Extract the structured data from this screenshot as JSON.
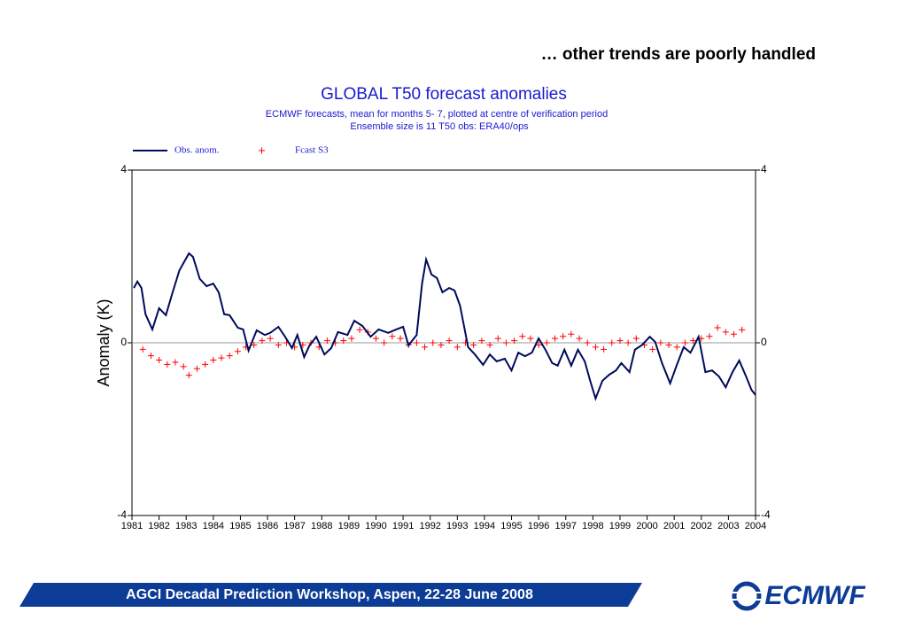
{
  "slide_title": "… other trends are poorly handled",
  "footer": "AGCI Decadal Prediction Workshop, Aspen, 22-28 June 2008",
  "logo": "ECMWF",
  "chart_data": {
    "type": "line",
    "title": "GLOBAL T50 forecast anomalies",
    "subtitle": [
      "ECMWF forecasts, mean for months  5- 7, plotted at centre of verification period",
      "Ensemble size is 11     T50 obs: ERA40/ops"
    ],
    "ylabel": "Anomaly (K)",
    "xlim": [
      1981,
      2004
    ],
    "xticks": [
      1981,
      1982,
      1983,
      1984,
      1985,
      1986,
      1987,
      1988,
      1989,
      1990,
      1991,
      1992,
      1993,
      1994,
      1995,
      1996,
      1997,
      1998,
      1999,
      2000,
      2001,
      2002,
      2003,
      2004
    ],
    "ylim": [
      -4,
      4
    ],
    "yticks": [
      -4,
      0,
      4
    ],
    "series": [
      {
        "name": "Obs. anom.",
        "color": "#000a5a",
        "style": "line",
        "x": [
          1981.07,
          1981.2,
          1981.35,
          1981.5,
          1981.75,
          1982.0,
          1982.25,
          1982.5,
          1982.75,
          1983.1,
          1983.25,
          1983.5,
          1983.75,
          1984.0,
          1984.2,
          1984.4,
          1984.6,
          1984.9,
          1985.1,
          1985.3,
          1985.6,
          1985.9,
          1986.1,
          1986.4,
          1986.65,
          1986.9,
          1987.1,
          1987.35,
          1987.55,
          1987.8,
          1988.1,
          1988.35,
          1988.6,
          1988.95,
          1989.2,
          1989.5,
          1989.8,
          1990.1,
          1990.45,
          1990.75,
          1991.0,
          1991.2,
          1991.5,
          1991.7,
          1991.85,
          1992.05,
          1992.25,
          1992.45,
          1992.7,
          1992.9,
          1993.1,
          1993.4,
          1993.65,
          1993.95,
          1994.2,
          1994.45,
          1994.75,
          1995.0,
          1995.25,
          1995.5,
          1995.75,
          1996.0,
          1996.25,
          1996.5,
          1996.7,
          1996.95,
          1997.2,
          1997.45,
          1997.7,
          1997.9,
          1998.1,
          1998.35,
          1998.6,
          1998.85,
          1999.05,
          1999.35,
          1999.55,
          1999.8,
          2000.1,
          2000.3,
          2000.55,
          2000.85,
          2001.1,
          2001.35,
          2001.6,
          2001.9,
          2002.15,
          2002.4,
          2002.65,
          2002.9,
          2003.15,
          2003.4,
          2003.65,
          2003.85,
          2004.0
        ],
        "values": [
          1.27,
          1.42,
          1.27,
          0.66,
          0.31,
          0.8,
          0.64,
          1.17,
          1.68,
          2.07,
          1.99,
          1.48,
          1.31,
          1.37,
          1.17,
          0.66,
          0.64,
          0.35,
          0.31,
          -0.18,
          0.29,
          0.18,
          0.23,
          0.37,
          0.14,
          -0.12,
          0.18,
          -0.33,
          -0.06,
          0.14,
          -0.27,
          -0.12,
          0.25,
          0.18,
          0.51,
          0.39,
          0.14,
          0.31,
          0.23,
          0.31,
          0.37,
          -0.06,
          0.18,
          1.37,
          1.93,
          1.58,
          1.5,
          1.17,
          1.27,
          1.21,
          0.86,
          -0.1,
          -0.27,
          -0.51,
          -0.27,
          -0.43,
          -0.37,
          -0.64,
          -0.23,
          -0.31,
          -0.23,
          0.1,
          -0.16,
          -0.47,
          -0.53,
          -0.16,
          -0.53,
          -0.16,
          -0.43,
          -0.88,
          -1.29,
          -0.88,
          -0.74,
          -0.64,
          -0.47,
          -0.68,
          -0.16,
          -0.06,
          0.14,
          0.02,
          -0.47,
          -0.94,
          -0.51,
          -0.1,
          -0.23,
          0.14,
          -0.68,
          -0.64,
          -0.78,
          -1.03,
          -0.68,
          -0.41,
          -0.78,
          -1.09,
          -1.21
        ]
      },
      {
        "name": "Fcast S3",
        "color": "#ff0000",
        "style": "cross",
        "x": [
          1981.4,
          1981.7,
          1982.0,
          1982.3,
          1982.6,
          1982.9,
          1983.1,
          1983.4,
          1983.7,
          1984.0,
          1984.3,
          1984.6,
          1984.9,
          1985.2,
          1985.5,
          1985.8,
          1986.1,
          1986.4,
          1986.7,
          1987.0,
          1987.3,
          1987.6,
          1987.9,
          1988.2,
          1988.5,
          1988.8,
          1989.1,
          1989.4,
          1989.7,
          1990.0,
          1990.3,
          1990.6,
          1990.9,
          1991.2,
          1991.5,
          1991.8,
          1992.1,
          1992.4,
          1992.7,
          1993.0,
          1993.3,
          1993.6,
          1993.9,
          1994.2,
          1994.5,
          1994.8,
          1995.1,
          1995.4,
          1995.7,
          1996.0,
          1996.3,
          1996.6,
          1996.9,
          1997.2,
          1997.5,
          1997.8,
          1998.1,
          1998.4,
          1998.7,
          1999.0,
          1999.3,
          1999.6,
          1999.9,
          2000.2,
          2000.5,
          2000.8,
          2001.1,
          2001.4,
          2001.7,
          2002.0,
          2002.3,
          2002.6,
          2002.9,
          2003.2,
          2003.5
        ],
        "values": [
          -0.15,
          -0.3,
          -0.4,
          -0.5,
          -0.45,
          -0.55,
          -0.75,
          -0.6,
          -0.5,
          -0.4,
          -0.35,
          -0.3,
          -0.2,
          -0.1,
          -0.05,
          0.05,
          0.1,
          -0.05,
          0.0,
          -0.1,
          -0.05,
          0.0,
          -0.1,
          0.05,
          0.0,
          0.05,
          0.1,
          0.3,
          0.25,
          0.1,
          0.0,
          0.15,
          0.1,
          -0.05,
          0.0,
          -0.1,
          0.0,
          -0.05,
          0.05,
          -0.1,
          0.0,
          -0.05,
          0.05,
          -0.05,
          0.1,
          0.0,
          0.05,
          0.15,
          0.1,
          -0.05,
          0.0,
          0.1,
          0.15,
          0.2,
          0.1,
          0.0,
          -0.1,
          -0.15,
          0.0,
          0.05,
          0.0,
          0.1,
          -0.05,
          -0.15,
          0.0,
          -0.05,
          -0.1,
          0.0,
          0.05,
          0.1,
          0.15,
          0.35,
          0.25,
          0.2,
          0.3
        ]
      }
    ]
  }
}
